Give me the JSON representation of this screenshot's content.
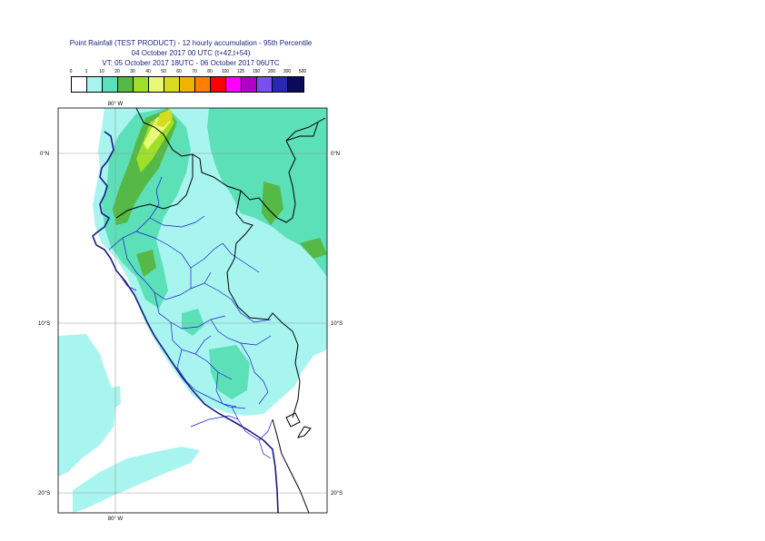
{
  "header": {
    "title_line1": "Point Rainfall (TEST PRODUCT) - 12 hourly accumulation - 95th Percentile",
    "title_line2": "04 October 2017 00 UTC (t+42,t+54)",
    "title_line3": "VT: 05 October 2017 18UTC - 06 October 2017 06UTC"
  },
  "legend": {
    "labels": [
      "0",
      "1",
      "10",
      "20",
      "30",
      "40",
      "50",
      "60",
      "70",
      "80",
      "100",
      "125",
      "150",
      "200",
      "300",
      "500"
    ],
    "colors": [
      "#ffffff",
      "#a8f5f0",
      "#5ce0b8",
      "#56b845",
      "#9ee028",
      "#e8f878",
      "#d8dc20",
      "#f0b400",
      "#ff8000",
      "#ff0000",
      "#ff00ff",
      "#b000c8",
      "#7850f0",
      "#2828b4",
      "#0a0a5a"
    ]
  },
  "axes": {
    "top_lon_label": "80° W",
    "bottom_lon_label": "80° W",
    "lat_labels": [
      "0°N",
      "10°S",
      "20°S"
    ]
  }
}
